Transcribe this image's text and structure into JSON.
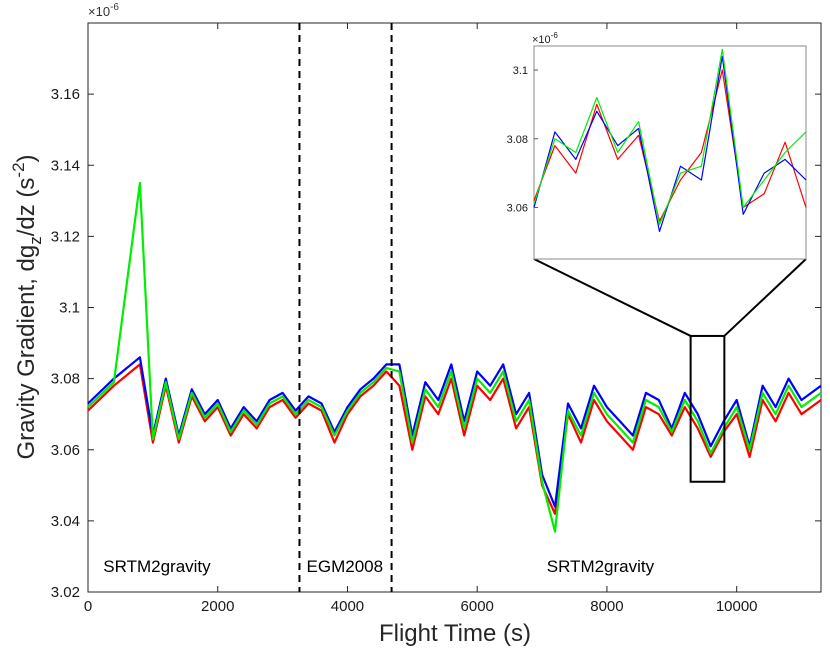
{
  "chart_data": {
    "type": "line",
    "title": "",
    "xlabel": "Flight Time (s)",
    "ylabel": "Gravity Gradient, dg_z/dz (s^-2)",
    "ylabel_parts": {
      "pre": "Gravity Gradient, dg",
      "sub": "z",
      "mid": "/dz (s",
      "sup": "-2",
      "post": ")"
    },
    "y_exponent": {
      "base": "×10",
      "power": "-6"
    },
    "xlim": [
      0,
      11300
    ],
    "ylim": [
      3.02,
      3.18
    ],
    "xticks": [
      0,
      2000,
      4000,
      6000,
      8000,
      10000
    ],
    "yticks": [
      3.02,
      3.04,
      3.06,
      3.08,
      3.1,
      3.12,
      3.14,
      3.16
    ],
    "ytick_labels": [
      "3.02",
      "3.04",
      "3.06",
      "3.08",
      "3.1",
      "3.12",
      "3.14",
      "3.16"
    ],
    "grid": false,
    "colors": {
      "red": "#ff0000",
      "blue": "#0000ff",
      "green": "#00ee00"
    },
    "region_dividers_x": [
      3260,
      4680
    ],
    "region_labels": [
      {
        "text": "SRTM2gravity",
        "x": 1700
      },
      {
        "text": "EGM2008",
        "x": 3970
      },
      {
        "text": "SRTM2gravity",
        "x": 7900
      }
    ],
    "series": [
      {
        "name": "red",
        "color": "#ff0000",
        "x": [
          0,
          400,
          800,
          1000,
          1200,
          1400,
          1600,
          1800,
          2000,
          2200,
          2400,
          2600,
          2800,
          3000,
          3200,
          3400,
          3600,
          3800,
          4000,
          4200,
          4400,
          4600,
          4800,
          5000,
          5200,
          5400,
          5600,
          5800,
          6000,
          6200,
          6400,
          6600,
          6800,
          7000,
          7200,
          7400,
          7600,
          7800,
          8000,
          8200,
          8400,
          8600,
          8800,
          9000,
          9200,
          9400,
          9600,
          9800,
          10000,
          10200,
          10400,
          10600,
          10800,
          11000,
          11300
        ],
        "values": [
          3.071,
          3.078,
          3.084,
          3.062,
          3.078,
          3.062,
          3.075,
          3.068,
          3.072,
          3.064,
          3.07,
          3.066,
          3.072,
          3.074,
          3.069,
          3.073,
          3.071,
          3.062,
          3.07,
          3.075,
          3.078,
          3.082,
          3.078,
          3.06,
          3.075,
          3.07,
          3.08,
          3.064,
          3.078,
          3.074,
          3.08,
          3.066,
          3.072,
          3.05,
          3.042,
          3.07,
          3.062,
          3.074,
          3.068,
          3.064,
          3.06,
          3.072,
          3.07,
          3.064,
          3.072,
          3.066,
          3.058,
          3.065,
          3.07,
          3.058,
          3.074,
          3.068,
          3.076,
          3.07,
          3.074
        ]
      },
      {
        "name": "blue",
        "color": "#0000ff",
        "x": [
          0,
          400,
          800,
          1000,
          1200,
          1400,
          1600,
          1800,
          2000,
          2200,
          2400,
          2600,
          2800,
          3000,
          3200,
          3400,
          3600,
          3800,
          4000,
          4200,
          4400,
          4600,
          4800,
          5000,
          5200,
          5400,
          5600,
          5800,
          6000,
          6200,
          6400,
          6600,
          6800,
          7000,
          7200,
          7400,
          7600,
          7800,
          8000,
          8200,
          8400,
          8600,
          8800,
          9000,
          9200,
          9400,
          9600,
          9800,
          10000,
          10200,
          10400,
          10600,
          10800,
          11000,
          11300
        ],
        "values": [
          3.073,
          3.08,
          3.086,
          3.064,
          3.08,
          3.064,
          3.077,
          3.07,
          3.074,
          3.066,
          3.072,
          3.068,
          3.074,
          3.076,
          3.071,
          3.075,
          3.073,
          3.065,
          3.072,
          3.077,
          3.08,
          3.084,
          3.084,
          3.064,
          3.079,
          3.074,
          3.084,
          3.068,
          3.082,
          3.078,
          3.084,
          3.07,
          3.076,
          3.053,
          3.044,
          3.073,
          3.066,
          3.078,
          3.072,
          3.068,
          3.064,
          3.076,
          3.074,
          3.066,
          3.076,
          3.07,
          3.061,
          3.068,
          3.074,
          3.061,
          3.078,
          3.072,
          3.08,
          3.074,
          3.078
        ]
      },
      {
        "name": "green",
        "color": "#00ee00",
        "x": [
          0,
          400,
          800,
          1000,
          1200,
          1400,
          1600,
          1800,
          2000,
          2200,
          2400,
          2600,
          2800,
          3000,
          3200,
          3400,
          3600,
          3800,
          4000,
          4200,
          4400,
          4600,
          4800,
          5000,
          5200,
          5400,
          5600,
          5800,
          6000,
          6200,
          6400,
          6600,
          6800,
          7000,
          7200,
          7400,
          7600,
          7800,
          8000,
          8200,
          8400,
          8600,
          8800,
          9000,
          9200,
          9400,
          9600,
          9800,
          10000,
          10200,
          10400,
          10600,
          10800,
          11000,
          11300
        ],
        "values": [
          3.072,
          3.079,
          3.135,
          3.063,
          3.079,
          3.063,
          3.076,
          3.069,
          3.073,
          3.065,
          3.071,
          3.067,
          3.073,
          3.075,
          3.07,
          3.074,
          3.072,
          3.064,
          3.071,
          3.076,
          3.079,
          3.083,
          3.082,
          3.062,
          3.077,
          3.072,
          3.082,
          3.066,
          3.08,
          3.076,
          3.082,
          3.068,
          3.074,
          3.051,
          3.037,
          3.071,
          3.064,
          3.076,
          3.07,
          3.066,
          3.062,
          3.074,
          3.072,
          3.065,
          3.074,
          3.068,
          3.059,
          3.066,
          3.072,
          3.06,
          3.076,
          3.07,
          3.078,
          3.072,
          3.076
        ]
      }
    ],
    "inset": {
      "type": "line",
      "y_exponent": {
        "base": "×10",
        "power": "-6"
      },
      "xlim": [
        9290,
        9810
      ],
      "ylim": [
        3.045,
        3.107
      ],
      "yticks": [
        3.06,
        3.08,
        3.1
      ],
      "ytick_labels": [
        "3.06",
        "3.08",
        "3.1"
      ],
      "zoom_box": {
        "x": [
          9290,
          9810
        ],
        "y": [
          3.051,
          3.092
        ]
      },
      "series": [
        {
          "name": "red",
          "color": "#ff0000",
          "x": [
            9290,
            9330,
            9370,
            9410,
            9450,
            9490,
            9530,
            9570,
            9610,
            9650,
            9690,
            9730,
            9770,
            9810
          ],
          "values": [
            3.062,
            3.078,
            3.07,
            3.09,
            3.074,
            3.081,
            3.056,
            3.068,
            3.076,
            3.1,
            3.06,
            3.064,
            3.079,
            3.06
          ]
        },
        {
          "name": "blue",
          "color": "#0000ff",
          "x": [
            9290,
            9330,
            9370,
            9410,
            9450,
            9490,
            9530,
            9570,
            9610,
            9650,
            9690,
            9730,
            9770,
            9810
          ],
          "values": [
            3.06,
            3.082,
            3.074,
            3.088,
            3.078,
            3.083,
            3.053,
            3.072,
            3.068,
            3.104,
            3.058,
            3.07,
            3.074,
            3.068
          ]
        },
        {
          "name": "green",
          "color": "#00ee00",
          "x": [
            9290,
            9330,
            9370,
            9410,
            9450,
            9490,
            9530,
            9570,
            9610,
            9650,
            9690,
            9730,
            9770,
            9810
          ],
          "values": [
            3.061,
            3.08,
            3.076,
            3.092,
            3.076,
            3.085,
            3.055,
            3.07,
            3.072,
            3.106,
            3.06,
            3.068,
            3.076,
            3.082
          ]
        }
      ]
    }
  }
}
